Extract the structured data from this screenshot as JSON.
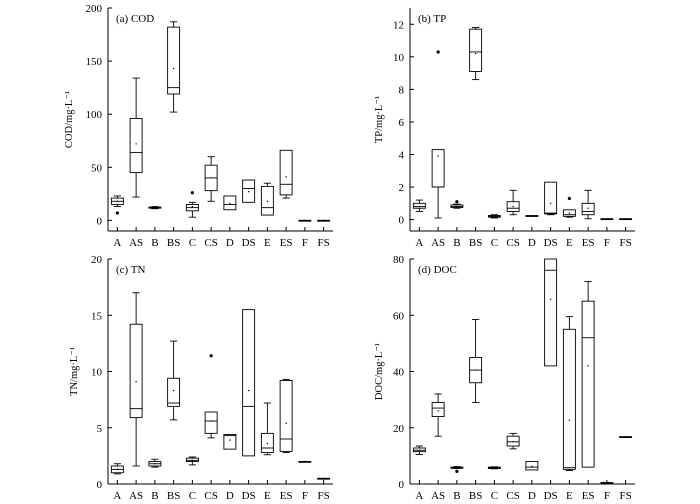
{
  "chart_data": [
    {
      "type": "box",
      "title": "(a) COD",
      "ylabel": "COD/mg·L⁻¹",
      "ylim": [
        -10,
        200
      ],
      "yticks": [
        0,
        50,
        100,
        150,
        200
      ],
      "categories": [
        "A",
        "AS",
        "B",
        "BS",
        "C",
        "CS",
        "D",
        "DS",
        "E",
        "ES",
        "F",
        "FS"
      ],
      "boxes": [
        {
          "min": 13,
          "q1": 15,
          "median": 18,
          "q3": 21,
          "max": 23,
          "mean": 18,
          "outliers": [
            7
          ]
        },
        {
          "min": 22,
          "q1": 45,
          "median": 64,
          "q3": 96,
          "max": 134,
          "mean": 72,
          "outliers": []
        },
        {
          "min": 11,
          "q1": 11.5,
          "median": 12,
          "q3": 12.5,
          "max": 13,
          "mean": 12,
          "outliers": []
        },
        {
          "min": 102,
          "q1": 119,
          "median": 125,
          "q3": 182,
          "max": 187,
          "mean": 143,
          "outliers": []
        },
        {
          "min": 3,
          "q1": 9,
          "median": 12,
          "q3": 15,
          "max": 17,
          "mean": 13,
          "outliers": [
            26
          ]
        },
        {
          "min": 18,
          "q1": 28,
          "median": 40,
          "q3": 52,
          "max": 60,
          "mean": 40,
          "outliers": []
        },
        {
          "min": 10,
          "q1": 10,
          "median": 15,
          "q3": 23,
          "max": 23,
          "mean": 16,
          "outliers": []
        },
        {
          "min": 17,
          "q1": 17,
          "median": 30,
          "q3": 38,
          "max": 38,
          "mean": 27,
          "outliers": []
        },
        {
          "min": 5,
          "q1": 5,
          "median": 12,
          "q3": 32,
          "max": 35,
          "mean": 18,
          "outliers": []
        },
        {
          "min": 21,
          "q1": 24,
          "median": 34,
          "q3": 66,
          "max": 66,
          "mean": 41,
          "outliers": []
        },
        {
          "min": 0,
          "q1": 0,
          "median": 0,
          "q3": 0,
          "max": 0,
          "mean": 0,
          "outliers": []
        },
        {
          "min": 0,
          "q1": 0,
          "median": 0,
          "q3": 0,
          "max": 0,
          "mean": 0,
          "outliers": []
        }
      ]
    },
    {
      "type": "box",
      "title": "(b) TP",
      "ylabel": "TP/mg·L⁻¹",
      "ylim": [
        -0.7,
        13
      ],
      "yticks": [
        0,
        2,
        4,
        6,
        8,
        10,
        12
      ],
      "categories": [
        "A",
        "AS",
        "B",
        "BS",
        "C",
        "CS",
        "D",
        "DS",
        "E",
        "ES",
        "F",
        "FS"
      ],
      "boxes": [
        {
          "min": 0.5,
          "q1": 0.7,
          "median": 0.8,
          "q3": 1.0,
          "max": 1.2,
          "mean": 0.8,
          "outliers": []
        },
        {
          "min": 0.1,
          "q1": 2.0,
          "median": 2.0,
          "q3": 4.3,
          "max": 4.3,
          "mean": 3.9,
          "outliers": [
            10.3
          ]
        },
        {
          "min": 0.7,
          "q1": 0.75,
          "median": 0.8,
          "q3": 0.9,
          "max": 0.95,
          "mean": 0.8,
          "outliers": [
            1.1
          ]
        },
        {
          "min": 8.6,
          "q1": 9.1,
          "median": 10.3,
          "q3": 11.7,
          "max": 11.8,
          "mean": 10.2,
          "outliers": []
        },
        {
          "min": 0.1,
          "q1": 0.15,
          "median": 0.2,
          "q3": 0.25,
          "max": 0.3,
          "mean": 0.2,
          "outliers": []
        },
        {
          "min": 0.3,
          "q1": 0.5,
          "median": 0.7,
          "q3": 1.1,
          "max": 1.8,
          "mean": 0.8,
          "outliers": []
        },
        {
          "min": 0.2,
          "q1": 0.2,
          "median": 0.2,
          "q3": 0.25,
          "max": 0.25,
          "mean": 0.2,
          "outliers": []
        },
        {
          "min": 0.3,
          "q1": 0.35,
          "median": 0.4,
          "q3": 2.3,
          "max": 2.3,
          "mean": 1.0,
          "outliers": []
        },
        {
          "min": 0.15,
          "q1": 0.2,
          "median": 0.3,
          "q3": 0.6,
          "max": 0.6,
          "mean": 0.4,
          "outliers": [
            1.3
          ]
        },
        {
          "min": 0.05,
          "q1": 0.3,
          "median": 0.5,
          "q3": 1.0,
          "max": 1.8,
          "mean": 0.7,
          "outliers": []
        },
        {
          "min": 0.05,
          "q1": 0.05,
          "median": 0.05,
          "q3": 0.05,
          "max": 0.05,
          "mean": 0.05,
          "outliers": []
        },
        {
          "min": 0.05,
          "q1": 0.05,
          "median": 0.05,
          "q3": 0.05,
          "max": 0.05,
          "mean": 0.05,
          "outliers": []
        }
      ]
    },
    {
      "type": "box",
      "title": "(c) TN",
      "ylabel": "TN/mg·L⁻¹",
      "ylim": [
        0,
        20
      ],
      "yticks": [
        0,
        5,
        10,
        15,
        20
      ],
      "categories": [
        "A",
        "AS",
        "B",
        "BS",
        "C",
        "CS",
        "D",
        "DS",
        "E",
        "ES",
        "F",
        "FS"
      ],
      "boxes": [
        {
          "min": 0.9,
          "q1": 1.0,
          "median": 1.3,
          "q3": 1.6,
          "max": 1.8,
          "mean": 1.3,
          "outliers": []
        },
        {
          "min": 1.6,
          "q1": 5.9,
          "median": 6.7,
          "q3": 14.2,
          "max": 17.0,
          "mean": 9.1,
          "outliers": []
        },
        {
          "min": 1.5,
          "q1": 1.6,
          "median": 1.8,
          "q3": 2.0,
          "max": 2.2,
          "mean": 1.8,
          "outliers": []
        },
        {
          "min": 5.7,
          "q1": 6.9,
          "median": 7.2,
          "q3": 9.4,
          "max": 12.7,
          "mean": 8.3,
          "outliers": []
        },
        {
          "min": 1.7,
          "q1": 2.0,
          "median": 2.1,
          "q3": 2.3,
          "max": 2.4,
          "mean": 2.1,
          "outliers": []
        },
        {
          "min": 4.1,
          "q1": 4.5,
          "median": 5.6,
          "q3": 6.4,
          "max": 6.4,
          "mean": 5.6,
          "outliers": [
            11.4
          ]
        },
        {
          "min": 3.1,
          "q1": 3.1,
          "median": 4.3,
          "q3": 4.4,
          "max": 4.4,
          "mean": 3.9,
          "outliers": []
        },
        {
          "min": 2.5,
          "q1": 2.5,
          "median": 6.9,
          "q3": 15.5,
          "max": 15.5,
          "mean": 8.3,
          "outliers": []
        },
        {
          "min": 2.6,
          "q1": 2.8,
          "median": 3.2,
          "q3": 4.5,
          "max": 7.2,
          "mean": 3.6,
          "outliers": []
        },
        {
          "min": 2.8,
          "q1": 2.9,
          "median": 4.0,
          "q3": 9.2,
          "max": 9.3,
          "mean": 5.4,
          "outliers": []
        },
        {
          "min": 2.0,
          "q1": 2.0,
          "median": 2.0,
          "q3": 2.0,
          "max": 2.0,
          "mean": 2.0,
          "outliers": []
        },
        {
          "min": 0.5,
          "q1": 0.5,
          "median": 0.5,
          "q3": 0.5,
          "max": 0.5,
          "mean": 0.5,
          "outliers": []
        }
      ]
    },
    {
      "type": "box",
      "title": "(d) DOC",
      "ylabel": "DOC/mg·L⁻¹",
      "ylim": [
        0,
        80
      ],
      "yticks": [
        0,
        20,
        40,
        60,
        80
      ],
      "categories": [
        "A",
        "AS",
        "B",
        "BS",
        "C",
        "CS",
        "D",
        "DS",
        "E",
        "ES",
        "F",
        "FS"
      ],
      "boxes": [
        {
          "min": 10.5,
          "q1": 11.5,
          "median": 12.0,
          "q3": 12.8,
          "max": 13.5,
          "mean": 12.0,
          "outliers": []
        },
        {
          "min": 17.0,
          "q1": 24.0,
          "median": 27.0,
          "q3": 29.0,
          "max": 32.0,
          "mean": 26.0,
          "outliers": []
        },
        {
          "min": 5.5,
          "q1": 5.6,
          "median": 5.8,
          "q3": 6.0,
          "max": 6.2,
          "mean": 5.8,
          "outliers": [
            4.5
          ]
        },
        {
          "min": 29.0,
          "q1": 36.0,
          "median": 40.5,
          "q3": 45.0,
          "max": 58.5,
          "mean": 40.5,
          "outliers": []
        },
        {
          "min": 5.4,
          "q1": 5.5,
          "median": 5.8,
          "q3": 6.0,
          "max": 6.1,
          "mean": 5.8,
          "outliers": []
        },
        {
          "min": 12.5,
          "q1": 13.5,
          "median": 15.0,
          "q3": 17.0,
          "max": 18.0,
          "mean": 15.0,
          "outliers": []
        },
        {
          "min": 5.0,
          "q1": 5.0,
          "median": 6.0,
          "q3": 8.0,
          "max": 8.0,
          "mean": 6.3,
          "outliers": []
        },
        {
          "min": 42.0,
          "q1": 42.0,
          "median": 76.0,
          "q3": 80.0,
          "max": 80.0,
          "mean": 65.7,
          "outliers": []
        },
        {
          "min": 4.8,
          "q1": 5.2,
          "median": 5.8,
          "q3": 55.0,
          "max": 59.5,
          "mean": 22.7,
          "outliers": []
        },
        {
          "min": 6.0,
          "q1": 6.0,
          "median": 52.0,
          "q3": 65.0,
          "max": 72.0,
          "mean": 42.0,
          "outliers": []
        },
        {
          "min": 0.5,
          "q1": 0.5,
          "median": 0.5,
          "q3": 0.5,
          "max": 0.5,
          "mean": 0.5,
          "outliers": []
        },
        {
          "min": 16.8,
          "q1": 16.8,
          "median": 16.8,
          "q3": 16.8,
          "max": 16.8,
          "mean": 16.8,
          "outliers": []
        }
      ]
    }
  ]
}
